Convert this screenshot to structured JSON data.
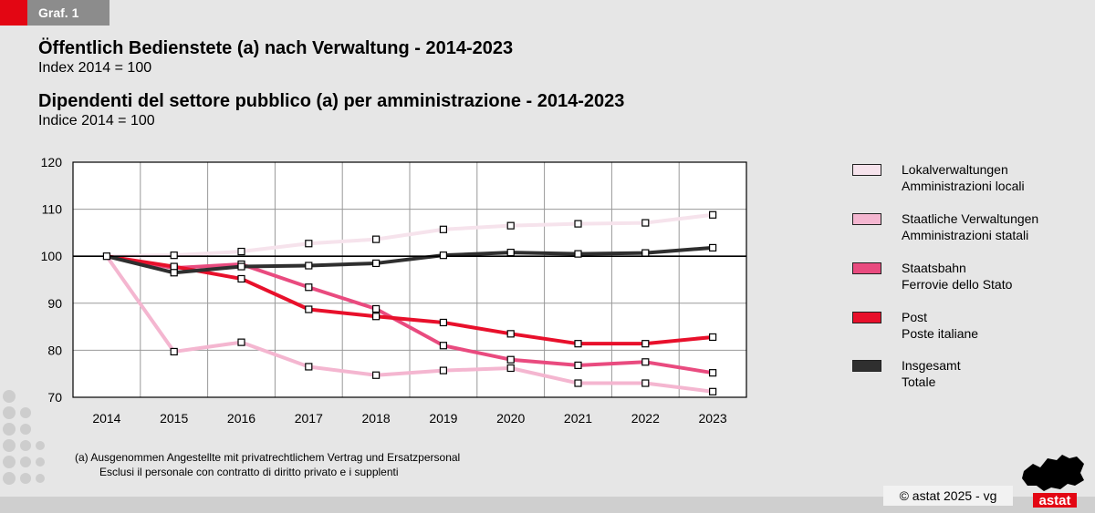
{
  "graph_label": "Graf. 1",
  "title_de": "Öffentlich Bedienstete (a) nach Verwaltung - 2014-2023",
  "subtitle_de": "Index 2014 = 100",
  "title_it": "Dipendenti del settore pubblico (a) per amministrazione - 2014-2023",
  "subtitle_it": "Indice 2014 = 100",
  "footnote_1": "(a)  Ausgenommen Angestellte mit privatrechtlichem Vertrag und Ersatzpersonal",
  "footnote_2": "Esclusi il personale con contratto di diritto privato e i supplenti",
  "copyright": "©  astat 2025 - vg",
  "logo_text": "astat",
  "legend": [
    {
      "line1": "Lokalverwaltungen",
      "line2": "Amministrazioni locali"
    },
    {
      "line1": "Staatliche Verwaltungen",
      "line2": "Amministrazioni statali"
    },
    {
      "line1": "Staatsbahn",
      "line2": "Ferrovie dello Stato"
    },
    {
      "line1": "Post",
      "line2": "Poste italiane"
    },
    {
      "line1": "Insgesamt",
      "line2": "Totale"
    }
  ],
  "chart_data": {
    "type": "line",
    "x": [
      "2014",
      "2015",
      "2016",
      "2017",
      "2018",
      "2019",
      "2020",
      "2021",
      "2022",
      "2023"
    ],
    "ylim": [
      70,
      120
    ],
    "yticks": [
      70,
      80,
      90,
      100,
      110,
      120
    ],
    "grid": true,
    "reference_line": 100,
    "legend_position": "right",
    "series": [
      {
        "name": "Lokalverwaltungen / Amministrazioni locali",
        "color": "#f6e3ec",
        "values": [
          100,
          100.2,
          101,
          102.7,
          103.6,
          105.7,
          106.5,
          106.9,
          107.1,
          108.8
        ]
      },
      {
        "name": "Staatliche Verwaltungen / Amministrazioni statali",
        "color": "#f4b6d0",
        "values": [
          100,
          79.7,
          81.7,
          76.5,
          74.7,
          75.7,
          76.2,
          73.0,
          73.0,
          71.2
        ]
      },
      {
        "name": "Staatsbahn / Ferrovie dello Stato",
        "color": "#e94b7f",
        "values": [
          100,
          97.5,
          98.3,
          93.4,
          88.8,
          81.0,
          78.0,
          76.8,
          77.5,
          75.2
        ]
      },
      {
        "name": "Post / Poste italiane",
        "color": "#e8102b",
        "values": [
          100,
          97.8,
          95.2,
          88.7,
          87.2,
          85.9,
          83.5,
          81.4,
          81.4,
          82.8
        ]
      },
      {
        "name": "Insgesamt / Totale",
        "color": "#2f2f2f",
        "values": [
          100,
          96.5,
          97.8,
          98.0,
          98.5,
          100.2,
          100.8,
          100.5,
          100.7,
          101.8
        ]
      }
    ]
  }
}
